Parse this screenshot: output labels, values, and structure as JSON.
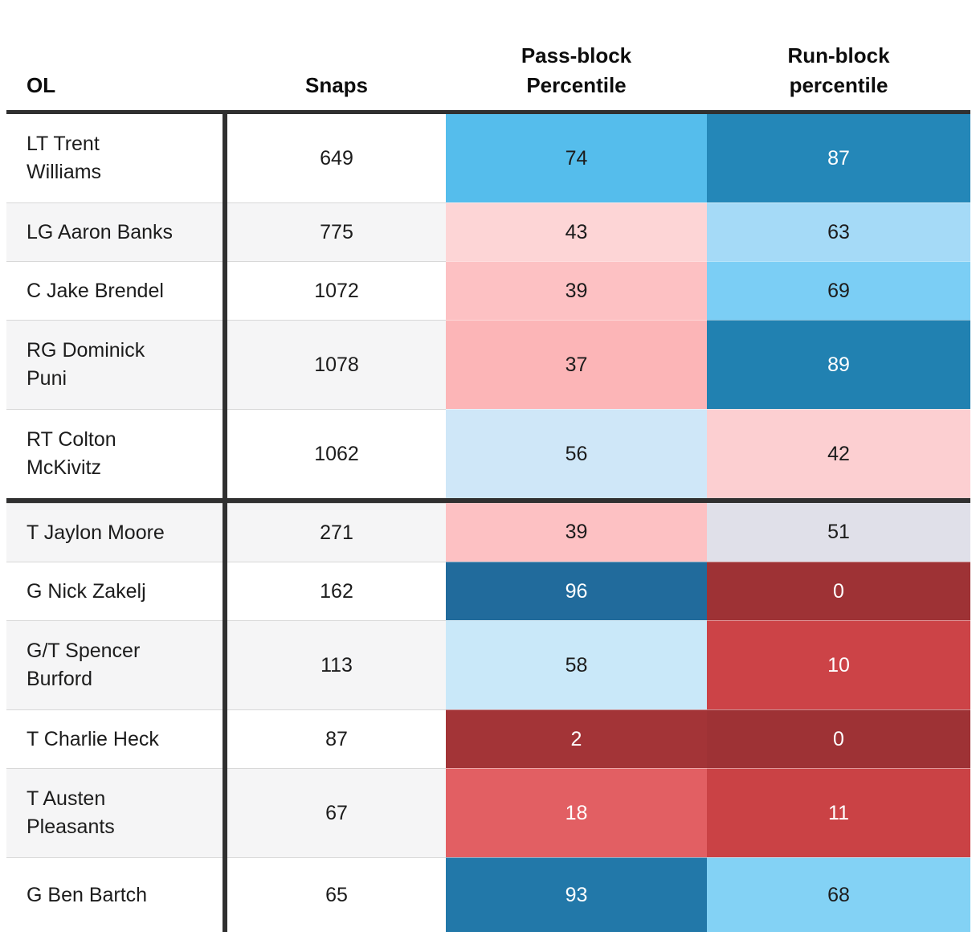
{
  "chart_data": {
    "type": "table",
    "columns": [
      "OL",
      "Snaps",
      "Pass-block\nPercentile",
      "Run-block\npercentile"
    ],
    "legend": "cells shaded on red-to-blue percentile scale (0 = dark red, 100 = dark blue)",
    "divider_after_row": 4,
    "rows": [
      {
        "name": "LT Trent Williams",
        "snaps": "649",
        "pass": {
          "value": "74",
          "bg": "#55bdec",
          "fg": "#1c1c1c"
        },
        "run": {
          "value": "87",
          "bg": "#2487b8",
          "fg": "#ffffff"
        }
      },
      {
        "name": "LG Aaron Banks",
        "snaps": "775",
        "pass": {
          "value": "43",
          "bg": "#fdd5d6",
          "fg": "#1c1c1c"
        },
        "run": {
          "value": "63",
          "bg": "#a5daf7",
          "fg": "#1c1c1c"
        }
      },
      {
        "name": "C Jake Brendel",
        "snaps": "1072",
        "pass": {
          "value": "39",
          "bg": "#fdc1c3",
          "fg": "#1c1c1c"
        },
        "run": {
          "value": "69",
          "bg": "#7bcef5",
          "fg": "#1c1c1c"
        }
      },
      {
        "name": "RG Dominick Puni",
        "snaps": "1078",
        "pass": {
          "value": "37",
          "bg": "#fcb5b7",
          "fg": "#1c1c1c"
        },
        "run": {
          "value": "89",
          "bg": "#2181b1",
          "fg": "#ffffff"
        }
      },
      {
        "name": "RT Colton McKivitz",
        "snaps": "1062",
        "pass": {
          "value": "56",
          "bg": "#cfe7f8",
          "fg": "#1c1c1c"
        },
        "run": {
          "value": "42",
          "bg": "#fccfd1",
          "fg": "#1c1c1c"
        }
      },
      {
        "name": "T Jaylon Moore",
        "snaps": "271",
        "pass": {
          "value": "39",
          "bg": "#fdc1c3",
          "fg": "#1c1c1c"
        },
        "run": {
          "value": "51",
          "bg": "#e0e0e9",
          "fg": "#1c1c1c"
        }
      },
      {
        "name": "G Nick Zakelj",
        "snaps": "162",
        "pass": {
          "value": "96",
          "bg": "#216b9c",
          "fg": "#ffffff"
        },
        "run": {
          "value": "0",
          "bg": "#9e3235",
          "fg": "#ffffff"
        }
      },
      {
        "name": "G/T Spencer Burford",
        "snaps": "113",
        "pass": {
          "value": "58",
          "bg": "#c9e8f9",
          "fg": "#1c1c1c"
        },
        "run": {
          "value": "10",
          "bg": "#cc4347",
          "fg": "#ffffff"
        }
      },
      {
        "name": "T Charlie Heck",
        "snaps": "87",
        "pass": {
          "value": "2",
          "bg": "#a33437",
          "fg": "#ffffff"
        },
        "run": {
          "value": "0",
          "bg": "#9e3235",
          "fg": "#ffffff"
        }
      },
      {
        "name": "T Austen Pleasants",
        "snaps": "67",
        "pass": {
          "value": "18",
          "bg": "#e25f63",
          "fg": "#ffffff"
        },
        "run": {
          "value": "11",
          "bg": "#ca4245",
          "fg": "#ffffff"
        }
      },
      {
        "name": "G Ben Bartch",
        "snaps": "65",
        "pass": {
          "value": "93",
          "bg": "#2278a9",
          "fg": "#ffffff"
        },
        "run": {
          "value": "68",
          "bg": "#83d2f5",
          "fg": "#1c1c1c"
        }
      }
    ]
  }
}
